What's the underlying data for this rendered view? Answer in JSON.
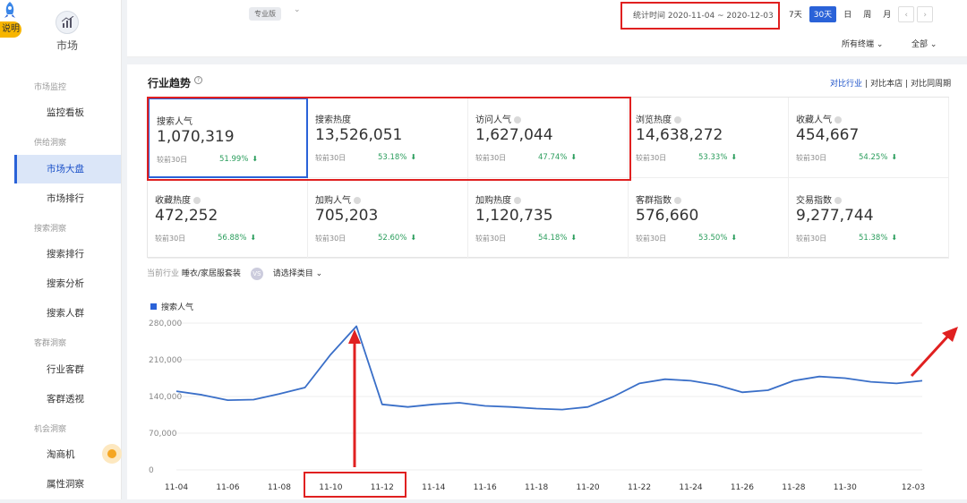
{
  "sidebar": {
    "badge": "说明",
    "market_label": "市场",
    "groups": [
      {
        "title": "市场监控",
        "items": [
          "监控看板"
        ]
      },
      {
        "title": "供给洞察",
        "items": [
          "市场大盘",
          "市场排行"
        ]
      },
      {
        "title": "搜索洞察",
        "items": [
          "搜索排行",
          "搜索分析",
          "搜索人群"
        ]
      },
      {
        "title": "客群洞察",
        "items": [
          "行业客群",
          "客群透视"
        ]
      },
      {
        "title": "机会洞察",
        "items": [
          "淘商机",
          "属性洞察"
        ]
      }
    ],
    "active": "市场大盘"
  },
  "topbar": {
    "edition": "专业版",
    "daterange": "统计时间 2020-11-04 ~ 2020-12-03",
    "ranges": [
      "7天",
      "30天",
      "日",
      "周",
      "月"
    ],
    "active_range": "30天",
    "filters": [
      "所有终端",
      "全部"
    ]
  },
  "panel": {
    "title": "行业趋势",
    "compare": [
      "对比行业",
      "对比本店",
      "对比同周期"
    ],
    "compare_label": "较前30日",
    "metrics": [
      {
        "name": "搜索人气",
        "value": "1,070,319",
        "pct": "51.99%"
      },
      {
        "name": "搜索热度",
        "value": "13,526,051",
        "pct": "53.18%"
      },
      {
        "name": "访问人气",
        "value": "1,627,044",
        "pct": "47.74%"
      },
      {
        "name": "浏览热度",
        "value": "14,638,272",
        "pct": "53.33%"
      },
      {
        "name": "收藏人气",
        "value": "454,667",
        "pct": "54.25%"
      },
      {
        "name": "收藏热度",
        "value": "472,252",
        "pct": "56.88%"
      },
      {
        "name": "加购人气",
        "value": "705,203",
        "pct": "52.60%"
      },
      {
        "name": "加购热度",
        "value": "1,120,735",
        "pct": "54.18%"
      },
      {
        "name": "客群指数",
        "value": "576,660",
        "pct": "53.50%"
      },
      {
        "name": "交易指数",
        "value": "9,277,744",
        "pct": "51.38%"
      }
    ],
    "industry_label": "当前行业",
    "industry": "睡衣/家居服套装",
    "vs": "VS",
    "select_category": "请选择类目"
  },
  "chart_data": {
    "type": "line",
    "title": "",
    "legend": [
      "搜索人气"
    ],
    "x": [
      "11-04",
      "11-05",
      "11-06",
      "11-07",
      "11-08",
      "11-09",
      "11-10",
      "11-11",
      "11-12",
      "11-13",
      "11-14",
      "11-15",
      "11-16",
      "11-17",
      "11-18",
      "11-19",
      "11-20",
      "11-21",
      "11-22",
      "11-23",
      "11-24",
      "11-25",
      "11-26",
      "11-27",
      "11-28",
      "11-29",
      "11-30",
      "12-01",
      "12-02",
      "12-03"
    ],
    "x_tick_labels": [
      "11-04",
      "11-06",
      "11-08",
      "11-10",
      "11-12",
      "11-14",
      "11-16",
      "11-18",
      "11-20",
      "11-22",
      "11-24",
      "11-26",
      "11-28",
      "11-30",
      "12-03"
    ],
    "series": [
      {
        "name": "搜索人气",
        "values": [
          150000,
          143000,
          133000,
          134000,
          145000,
          157000,
          220000,
          274000,
          125000,
          120000,
          125000,
          128000,
          122000,
          120000,
          117000,
          115000,
          120000,
          140000,
          165000,
          173000,
          170000,
          162000,
          148000,
          152000,
          170000,
          178000,
          175000,
          168000,
          165000,
          170000
        ]
      }
    ],
    "ylim": [
      0,
      280000
    ],
    "y_ticks": [
      "0",
      "70,000",
      "140,000",
      "210,000",
      "280,000"
    ],
    "color": "#3a6fc8"
  }
}
